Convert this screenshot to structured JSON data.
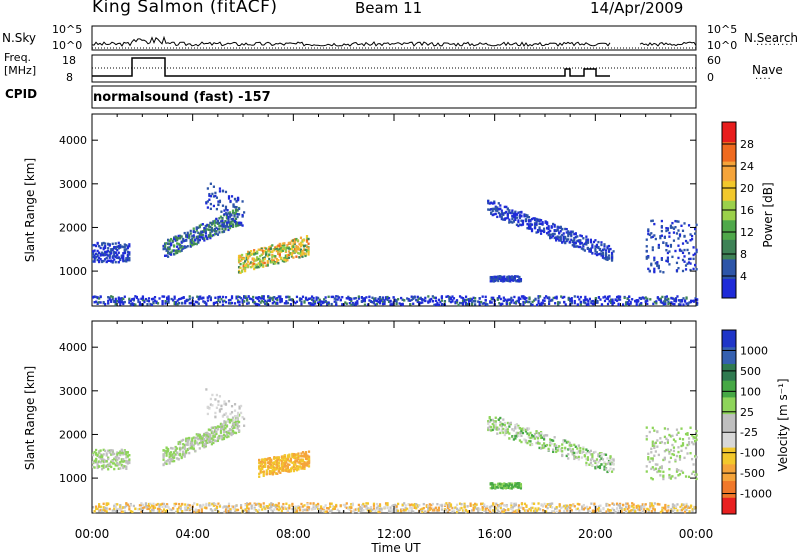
{
  "header": {
    "station": "King Salmon (fitACF)",
    "beam": "Beam 11",
    "date": "14/Apr/2009"
  },
  "top_panels": {
    "nsky_label": "N.Sky",
    "nsearch_label": "N.Search",
    "nsearch_dots": "·········",
    "freq_label_1": "Freq.",
    "freq_label_2": "[MHz]",
    "nave_label": "Nave",
    "nave_dots": "····",
    "cpid_label": "CPID",
    "cpid_value": "normalsound (fast) -157",
    "noise_left_ticks": [
      "10^5",
      "10^0"
    ],
    "noise_right_ticks": [
      "10^5",
      "10^0"
    ],
    "freq_left_ticks": [
      "18",
      "8"
    ],
    "freq_right_ticks": [
      "60",
      "0"
    ]
  },
  "colors": {
    "power_scale": [
      "#1f2bd8",
      "#2d55a8",
      "#3e8256",
      "#4fa84a",
      "#9bd04a",
      "#f2c82c",
      "#f5a43a",
      "#ef6a1f",
      "#e81d1d"
    ],
    "velocity_scale": [
      "#1f35c8",
      "#3560b0",
      "#2f7a50",
      "#46a845",
      "#8ed45a",
      "#bfbfbf",
      "#d8d8d8",
      "#f2c82c",
      "#f5a43a",
      "#f0782a",
      "#e82020"
    ]
  },
  "chart_data": [
    {
      "type": "heatmap",
      "name_hint": "power",
      "ylabel": "Slant Range [km]",
      "xlabel": "Time UT",
      "x_ticks": [
        "00:00",
        "04:00",
        "08:00",
        "12:00",
        "16:00",
        "20:00",
        "00:00"
      ],
      "y_ticks": [
        1000,
        2000,
        3000,
        4000
      ],
      "ylim": [
        200,
        4600
      ],
      "xlim_hours": [
        0,
        24
      ],
      "colorbar_label": "Power [dB]",
      "colorbar_ticks": [
        4,
        8,
        12,
        16,
        20,
        24,
        28
      ]
    },
    {
      "type": "heatmap",
      "name_hint": "velocity",
      "ylabel": "Slant Range [km]",
      "xlabel": "Time UT",
      "x_ticks": [
        "00:00",
        "04:00",
        "08:00",
        "12:00",
        "16:00",
        "20:00",
        "00:00"
      ],
      "y_ticks": [
        1000,
        2000,
        3000,
        4000
      ],
      "ylim": [
        200,
        4600
      ],
      "xlim_hours": [
        0,
        24
      ],
      "colorbar_label": "Velocity [m s⁻¹]",
      "colorbar_ticks": [
        "1000",
        "500",
        "100",
        "25",
        "-25",
        "-100",
        "-500",
        "-1000"
      ]
    }
  ]
}
